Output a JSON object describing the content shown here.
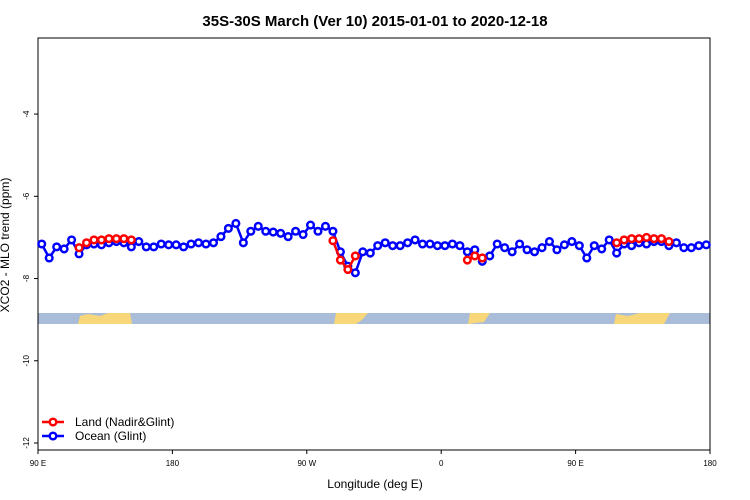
{
  "chart_data": {
    "type": "line",
    "title": "35S-30S March (Ver 10)   2015-01-01 to 2020-12-18",
    "xlabel": "Longitude (deg E)",
    "ylabel": "XCO2 - MLO trend (ppm)",
    "xlim": [
      90,
      540
    ],
    "ylim": [
      -12.17,
      -2.15
    ],
    "xticks": [
      {
        "value": 90,
        "label": "90 E"
      },
      180,
      {
        "value": 270,
        "label": "90 W"
      },
      {
        "value": 360,
        "label": "0"
      },
      {
        "value": 450,
        "label": "90 E"
      },
      {
        "value": 540,
        "label": "180"
      }
    ],
    "yticks": [
      -12,
      -10,
      -8,
      -6,
      -4
    ],
    "legend": "bottom-left",
    "x": [
      92.5,
      97.5,
      102.5,
      107.5,
      112.5,
      117.5,
      122.5,
      127.5,
      132.5,
      137.5,
      142.5,
      147.5,
      152.5,
      157.5,
      162.5,
      167.5,
      172.5,
      177.5,
      182.5,
      187.5,
      192.5,
      197.5,
      202.5,
      207.5,
      212.5,
      217.5,
      222.5,
      227.5,
      232.5,
      237.5,
      242.5,
      247.5,
      252.5,
      257.5,
      262.5,
      267.5,
      272.5,
      277.5,
      282.5,
      287.5,
      292.5,
      297.5,
      302.5,
      307.5,
      312.5,
      317.5,
      322.5,
      327.5,
      332.5,
      337.5,
      342.5,
      347.5,
      352.5,
      357.5,
      362.5,
      367.5,
      372.5,
      377.5,
      382.5,
      387.5,
      392.5,
      397.5,
      402.5,
      407.5,
      412.5,
      417.5,
      422.5,
      427.5,
      432.5,
      437.5,
      442.5,
      447.5,
      452.5,
      457.5,
      462.5,
      467.5,
      472.5,
      477.5,
      482.5,
      487.5,
      492.5,
      497.5,
      502.5,
      507.5,
      512.5,
      517.5,
      522.5,
      527.5,
      532.5,
      537.5
    ],
    "series": [
      {
        "name": "Ocean (Glint)",
        "color": "#0000ff",
        "values": [
          -7.16,
          -7.5,
          -7.23,
          -7.28,
          -7.06,
          -7.4,
          -7.18,
          -7.16,
          -7.18,
          -7.13,
          -7.1,
          -7.13,
          -7.23,
          -7.1,
          -7.23,
          -7.23,
          -7.16,
          -7.18,
          -7.18,
          -7.23,
          -7.16,
          -7.13,
          -7.16,
          -7.13,
          -6.98,
          -6.78,
          -6.66,
          -7.13,
          -6.85,
          -6.73,
          -6.85,
          -6.87,
          -6.9,
          -6.98,
          -6.85,
          -6.93,
          -6.7,
          -6.85,
          -6.73,
          -6.85,
          -7.35,
          -7.7,
          -7.86,
          -7.35,
          -7.38,
          -7.2,
          -7.13,
          -7.2,
          -7.2,
          -7.13,
          -7.06,
          -7.16,
          -7.16,
          -7.2,
          -7.2,
          -7.16,
          -7.2,
          -7.35,
          -7.3,
          -7.58,
          -7.45,
          -7.16,
          -7.25,
          -7.35,
          -7.16,
          -7.3,
          -7.35,
          -7.25,
          -7.1,
          -7.3,
          -7.18,
          -7.1,
          -7.2,
          -7.5,
          -7.2,
          -7.28,
          -7.06,
          -7.38,
          -7.16,
          -7.2,
          -7.13,
          -7.16,
          -7.1,
          -7.1,
          -7.2,
          -7.13,
          -7.25,
          -7.25,
          -7.2,
          -7.18
        ]
      },
      {
        "name": "Land (Nadir&Glint)",
        "color": "#ff0000",
        "values": [
          null,
          null,
          null,
          null,
          null,
          -7.25,
          -7.13,
          -7.06,
          -7.06,
          -7.03,
          -7.03,
          -7.03,
          -7.06,
          null,
          null,
          null,
          null,
          null,
          null,
          null,
          null,
          null,
          null,
          null,
          null,
          null,
          null,
          null,
          null,
          null,
          null,
          null,
          null,
          null,
          null,
          null,
          null,
          null,
          null,
          -7.08,
          -7.55,
          -7.78,
          -7.45,
          null,
          null,
          null,
          null,
          null,
          null,
          null,
          null,
          null,
          null,
          null,
          null,
          null,
          null,
          -7.55,
          -7.45,
          -7.5,
          null,
          null,
          null,
          null,
          null,
          null,
          null,
          null,
          null,
          null,
          null,
          null,
          null,
          null,
          null,
          null,
          null,
          -7.13,
          -7.06,
          -7.03,
          -7.03,
          -7.0,
          -7.03,
          -7.03,
          -7.1,
          null,
          null,
          null,
          null,
          null
        ]
      }
    ]
  }
}
